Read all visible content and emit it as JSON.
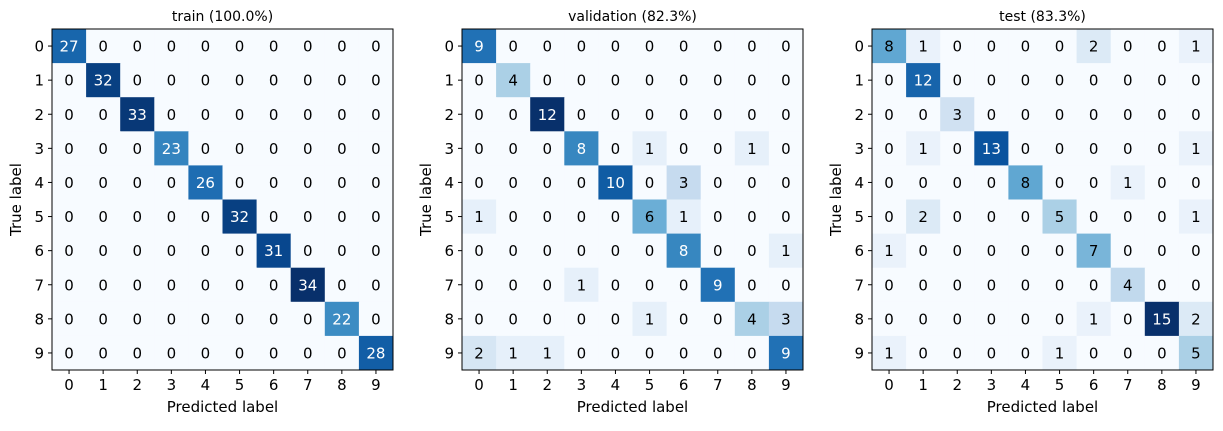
{
  "chart_data": [
    {
      "type": "heatmap",
      "title": "train (100.0%)",
      "xlabel": "Predicted label",
      "ylabel": "True label",
      "x_ticks": [
        "0",
        "1",
        "2",
        "3",
        "4",
        "5",
        "6",
        "7",
        "8",
        "9"
      ],
      "y_ticks": [
        "0",
        "1",
        "2",
        "3",
        "4",
        "5",
        "6",
        "7",
        "8",
        "9"
      ],
      "colormap": "Blues",
      "matrix": [
        [
          27,
          0,
          0,
          0,
          0,
          0,
          0,
          0,
          0,
          0
        ],
        [
          0,
          32,
          0,
          0,
          0,
          0,
          0,
          0,
          0,
          0
        ],
        [
          0,
          0,
          33,
          0,
          0,
          0,
          0,
          0,
          0,
          0
        ],
        [
          0,
          0,
          0,
          23,
          0,
          0,
          0,
          0,
          0,
          0
        ],
        [
          0,
          0,
          0,
          0,
          26,
          0,
          0,
          0,
          0,
          0
        ],
        [
          0,
          0,
          0,
          0,
          0,
          32,
          0,
          0,
          0,
          0
        ],
        [
          0,
          0,
          0,
          0,
          0,
          0,
          31,
          0,
          0,
          0
        ],
        [
          0,
          0,
          0,
          0,
          0,
          0,
          0,
          34,
          0,
          0
        ],
        [
          0,
          0,
          0,
          0,
          0,
          0,
          0,
          0,
          22,
          0
        ],
        [
          0,
          0,
          0,
          0,
          0,
          0,
          0,
          0,
          0,
          28
        ]
      ]
    },
    {
      "type": "heatmap",
      "title": "validation (82.3%)",
      "xlabel": "Predicted label",
      "ylabel": "True label",
      "x_ticks": [
        "0",
        "1",
        "2",
        "3",
        "4",
        "5",
        "6",
        "7",
        "8",
        "9"
      ],
      "y_ticks": [
        "0",
        "1",
        "2",
        "3",
        "4",
        "5",
        "6",
        "7",
        "8",
        "9"
      ],
      "colormap": "Blues",
      "matrix": [
        [
          9,
          0,
          0,
          0,
          0,
          0,
          0,
          0,
          0,
          0
        ],
        [
          0,
          4,
          0,
          0,
          0,
          0,
          0,
          0,
          0,
          0
        ],
        [
          0,
          0,
          12,
          0,
          0,
          0,
          0,
          0,
          0,
          0
        ],
        [
          0,
          0,
          0,
          8,
          0,
          1,
          0,
          0,
          1,
          0
        ],
        [
          0,
          0,
          0,
          0,
          10,
          0,
          3,
          0,
          0,
          0
        ],
        [
          1,
          0,
          0,
          0,
          0,
          6,
          1,
          0,
          0,
          0
        ],
        [
          0,
          0,
          0,
          0,
          0,
          0,
          8,
          0,
          0,
          1
        ],
        [
          0,
          0,
          0,
          1,
          0,
          0,
          0,
          9,
          0,
          0
        ],
        [
          0,
          0,
          0,
          0,
          0,
          1,
          0,
          0,
          4,
          3
        ],
        [
          2,
          1,
          1,
          0,
          0,
          0,
          0,
          0,
          0,
          9
        ]
      ]
    },
    {
      "type": "heatmap",
      "title": "test (83.3%)",
      "xlabel": "Predicted label",
      "ylabel": "True label",
      "x_ticks": [
        "0",
        "1",
        "2",
        "3",
        "4",
        "5",
        "6",
        "7",
        "8",
        "9"
      ],
      "y_ticks": [
        "0",
        "1",
        "2",
        "3",
        "4",
        "5",
        "6",
        "7",
        "8",
        "9"
      ],
      "colormap": "Blues",
      "matrix": [
        [
          8,
          1,
          0,
          0,
          0,
          0,
          2,
          0,
          0,
          1
        ],
        [
          0,
          12,
          0,
          0,
          0,
          0,
          0,
          0,
          0,
          0
        ],
        [
          0,
          0,
          3,
          0,
          0,
          0,
          0,
          0,
          0,
          0
        ],
        [
          0,
          1,
          0,
          13,
          0,
          0,
          0,
          0,
          0,
          1
        ],
        [
          0,
          0,
          0,
          0,
          8,
          0,
          0,
          1,
          0,
          0
        ],
        [
          0,
          2,
          0,
          0,
          0,
          5,
          0,
          0,
          0,
          1
        ],
        [
          1,
          0,
          0,
          0,
          0,
          0,
          7,
          0,
          0,
          0
        ],
        [
          0,
          0,
          0,
          0,
          0,
          0,
          0,
          4,
          0,
          0
        ],
        [
          0,
          0,
          0,
          0,
          0,
          0,
          1,
          0,
          15,
          2
        ],
        [
          1,
          0,
          0,
          0,
          0,
          1,
          0,
          0,
          0,
          5
        ]
      ]
    }
  ]
}
